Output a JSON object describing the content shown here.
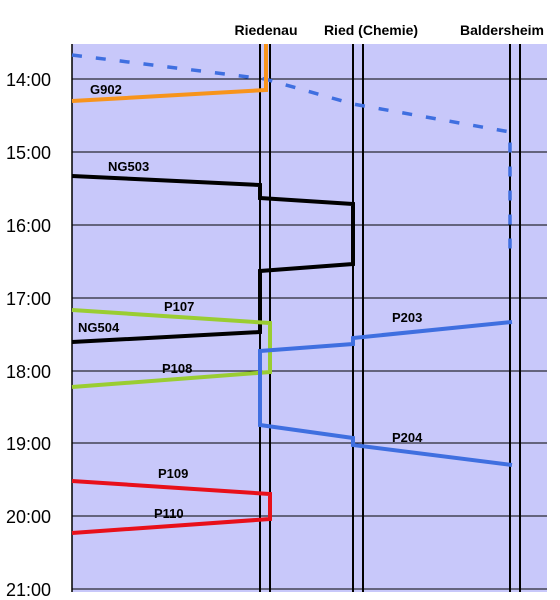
{
  "stations": [
    "Riedenau",
    "Ried (Chemie)",
    "Baldersheim"
  ],
  "times": [
    "14:00",
    "15:00",
    "16:00",
    "17:00",
    "18:00",
    "19:00",
    "20:00",
    "21:00"
  ],
  "colors": {
    "background": "#c8c8fa",
    "orange": "#f7941d",
    "blue": "#3f6fe0",
    "black": "#000000",
    "green": "#9acd32",
    "red": "#e8101a"
  },
  "trains": [
    {
      "label": "G902",
      "color": "orange"
    },
    {
      "label": "NG503",
      "color": "black"
    },
    {
      "label": "P107",
      "color": "green"
    },
    {
      "label": "NG504",
      "color": "black"
    },
    {
      "label": "P108",
      "color": "green"
    },
    {
      "label": "P203",
      "color": "blue"
    },
    {
      "label": "P204",
      "color": "blue"
    },
    {
      "label": "P109",
      "color": "red"
    },
    {
      "label": "P110",
      "color": "red"
    }
  ]
}
